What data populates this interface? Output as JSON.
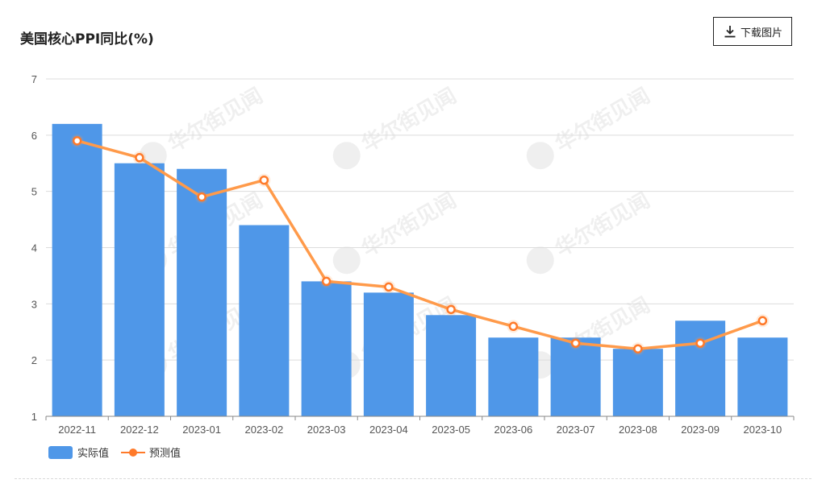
{
  "header": {
    "title": "美国核心PPI同比(%)",
    "download_label": "下载图片"
  },
  "watermark": "华尔街见闻",
  "colors": {
    "bar": "#4f97e8",
    "line": "#ff9a4a",
    "marker_fill": "#ffffff",
    "marker_stroke": "#ff7a2a",
    "grid": "#dcdcdc",
    "axis": "#888888"
  },
  "chart_data": {
    "type": "bar",
    "title": "美国核心PPI同比(%)",
    "categories": [
      "2022-11",
      "2022-12",
      "2023-01",
      "2023-02",
      "2023-03",
      "2023-04",
      "2023-05",
      "2023-06",
      "2023-07",
      "2023-08",
      "2023-09",
      "2023-10"
    ],
    "ylim": [
      1,
      7
    ],
    "yticks": [
      1,
      2,
      3,
      4,
      5,
      6,
      7
    ],
    "grid": true,
    "legend_position": "bottom-left",
    "series": [
      {
        "name": "实际值",
        "type": "bar",
        "values": [
          6.2,
          5.5,
          5.4,
          4.4,
          3.4,
          3.2,
          2.8,
          2.4,
          2.4,
          2.2,
          2.7,
          2.4
        ]
      },
      {
        "name": "预测值",
        "type": "line",
        "values": [
          5.9,
          5.6,
          4.9,
          5.2,
          3.4,
          3.3,
          2.9,
          2.6,
          2.3,
          2.2,
          2.3,
          2.7
        ]
      }
    ]
  }
}
